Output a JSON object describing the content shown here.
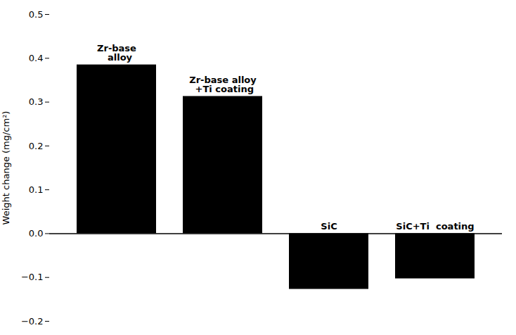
{
  "chart_data": {
    "type": "bar",
    "ylabel": "Weight change (mg/cm²)",
    "categories": [
      "Zr-base\n  alloy",
      "Zr-base alloy\n +Ti coating",
      "SiC",
      "SiC+Ti  coating"
    ],
    "values": [
      0.385,
      0.313,
      -0.127,
      -0.103
    ],
    "ylim": [
      -0.2,
      0.5
    ],
    "yticks": [
      {
        "value": -0.2,
        "label": "−0.2"
      },
      {
        "value": -0.1,
        "label": "−0.1"
      },
      {
        "value": 0.0,
        "label": "0.0"
      },
      {
        "value": 0.1,
        "label": "0.1"
      },
      {
        "value": 0.2,
        "label": "0.2"
      },
      {
        "value": 0.3,
        "label": "0.3"
      },
      {
        "value": 0.4,
        "label": "0.4"
      },
      {
        "value": 0.5,
        "label": "0.5"
      }
    ],
    "grid": false,
    "tick_labels": "y"
  }
}
